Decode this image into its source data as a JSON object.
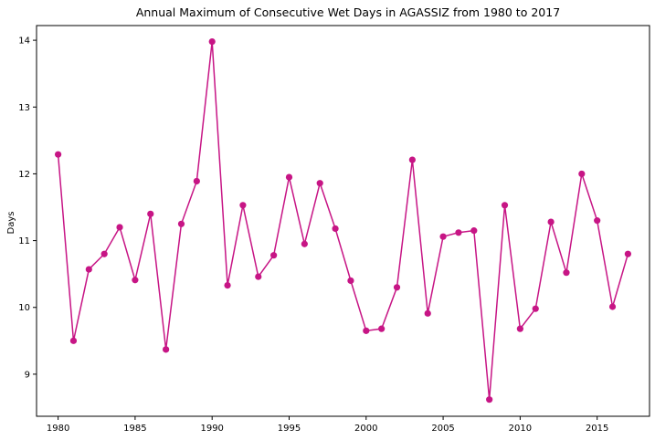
{
  "chart_data": {
    "type": "line",
    "title": "Annual Maximum of Consecutive Wet Days in AGASSIZ from 1980 to 2017",
    "xlabel": "",
    "ylabel": "Days",
    "xlim": [
      1978.6,
      2018.4
    ],
    "ylim": [
      8.37,
      14.22
    ],
    "xticks": [
      1980,
      1985,
      1990,
      1995,
      2000,
      2005,
      2010,
      2015
    ],
    "yticks": [
      9,
      10,
      11,
      12,
      13,
      14
    ],
    "grid": false,
    "color": "#c71585",
    "x": [
      1980,
      1981,
      1982,
      1983,
      1984,
      1985,
      1986,
      1987,
      1988,
      1989,
      1990,
      1991,
      1992,
      1993,
      1994,
      1995,
      1996,
      1997,
      1998,
      1999,
      2000,
      2001,
      2002,
      2003,
      2004,
      2005,
      2006,
      2007,
      2008,
      2009,
      2010,
      2011,
      2012,
      2013,
      2014,
      2015,
      2016,
      2017
    ],
    "y": [
      12.29,
      9.5,
      10.57,
      10.8,
      11.2,
      10.41,
      11.4,
      9.37,
      11.25,
      11.89,
      13.98,
      10.33,
      11.53,
      10.46,
      10.78,
      11.95,
      10.95,
      11.86,
      11.18,
      10.4,
      9.65,
      9.68,
      10.3,
      12.21,
      9.91,
      11.06,
      11.12,
      11.15,
      8.62,
      11.53,
      9.68,
      9.98,
      11.28,
      10.52,
      12.0,
      11.3,
      10.01,
      10.8
    ]
  }
}
